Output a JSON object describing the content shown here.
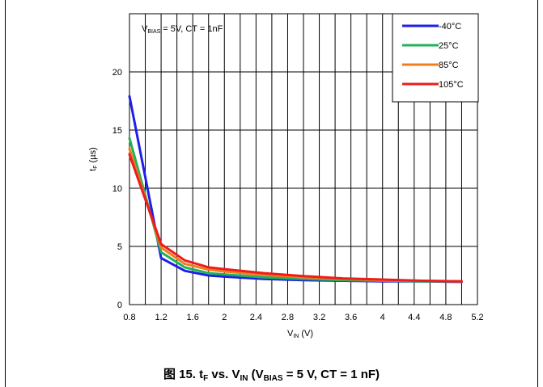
{
  "caption": {
    "figure_prefix": "图 15.",
    "y_var": "t",
    "y_sub": "F",
    "vs": "vs.",
    "x_var": "V",
    "x_sub": "IN",
    "cond_open": "(V",
    "cond_sub": "BIAS",
    "cond_rest": "= 5 V, CT = 1 nF)"
  },
  "chart_data": {
    "type": "line",
    "annotation": {
      "v": "V",
      "sub": "BIAS",
      "rest": "= 5V, CT = 1nF"
    },
    "xlabel": {
      "main": "V",
      "sub": "IN",
      "unit": "(V)"
    },
    "ylabel": {
      "main": "t",
      "sub": "F",
      "unit": "(µs)"
    },
    "xlim": [
      0.8,
      5.2
    ],
    "ylim": [
      0,
      25
    ],
    "x_ticks": [
      0.8,
      1.2,
      1.6,
      2,
      2.4,
      2.8,
      3.2,
      3.6,
      4,
      4.4,
      4.8,
      5.2
    ],
    "x_tick_labels": [
      "0.8",
      "1.2",
      "1.6",
      "2",
      "2.4",
      "2.8",
      "3.2",
      "3.6",
      "4",
      "4.4",
      "4.8",
      "5.2"
    ],
    "y_ticks": [
      0,
      5,
      10,
      15,
      20
    ],
    "y_tick_labels": [
      "0",
      "5",
      "10",
      "15",
      "20"
    ],
    "x_grid_step": 0.2,
    "grid": true,
    "legend_position": "top-right",
    "series": [
      {
        "name": "-40°C",
        "color": "#1f1fe6",
        "x": [
          0.8,
          1.2,
          1.5,
          1.8,
          2.0,
          2.5,
          3.0,
          3.5,
          4.0,
          4.5,
          5.0
        ],
        "y": [
          17.9,
          4.0,
          2.9,
          2.5,
          2.4,
          2.2,
          2.1,
          2.05,
          2.0,
          2.0,
          1.95
        ]
      },
      {
        "name": "25°C",
        "color": "#1fb25a",
        "x": [
          0.8,
          1.2,
          1.5,
          1.8,
          2.0,
          2.5,
          3.0,
          3.5,
          4.0,
          4.5,
          5.0
        ],
        "y": [
          14.3,
          4.5,
          3.2,
          2.7,
          2.6,
          2.35,
          2.2,
          2.1,
          2.05,
          2.0,
          2.0
        ]
      },
      {
        "name": "85°C",
        "color": "#f07c1c",
        "x": [
          0.8,
          1.2,
          1.5,
          1.8,
          2.0,
          2.5,
          3.0,
          3.5,
          4.0,
          4.5,
          5.0
        ],
        "y": [
          13.4,
          4.9,
          3.5,
          3.0,
          2.85,
          2.55,
          2.35,
          2.2,
          2.1,
          2.05,
          2.0
        ]
      },
      {
        "name": "105°C",
        "color": "#ee1c1c",
        "x": [
          0.8,
          1.2,
          1.5,
          1.8,
          2.0,
          2.5,
          3.0,
          3.5,
          4.0,
          4.5,
          5.0
        ],
        "y": [
          12.9,
          5.2,
          3.8,
          3.2,
          3.05,
          2.7,
          2.45,
          2.25,
          2.15,
          2.05,
          2.0
        ]
      }
    ]
  }
}
